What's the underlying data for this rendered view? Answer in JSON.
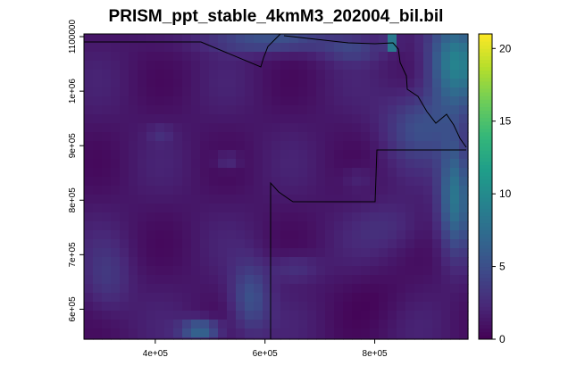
{
  "chart_data": {
    "type": "heatmap",
    "title": "PRISM_ppt_stable_4kmM3_202004_bil.bil",
    "xlabel": "",
    "ylabel": "",
    "x_ticks": [
      {
        "value": 400000,
        "label": "4e+05"
      },
      {
        "value": 600000,
        "label": "6e+05"
      },
      {
        "value": 800000,
        "label": "8e+05"
      }
    ],
    "y_ticks": [
      {
        "value": 600000,
        "label": "6e+05"
      },
      {
        "value": 700000,
        "label": "7e+05"
      },
      {
        "value": 800000,
        "label": "8e+05"
      },
      {
        "value": 900000,
        "label": "9e+05"
      },
      {
        "value": 1000000,
        "label": "1e+06"
      },
      {
        "value": 1100000,
        "label": "1100000"
      }
    ],
    "xlim": [
      270000,
      970000
    ],
    "ylim": [
      545000,
      1105000
    ],
    "colorbar": {
      "range": [
        0,
        21
      ],
      "ticks": [
        {
          "value": 0,
          "label": "0"
        },
        {
          "value": 5,
          "label": "5"
        },
        {
          "value": 10,
          "label": "10"
        },
        {
          "value": 15,
          "label": "15"
        },
        {
          "value": 20,
          "label": "20"
        }
      ],
      "palette": "viridis"
    },
    "grid": false,
    "colors": {
      "viridis_low": "#440154",
      "viridis_mid": "#21908C",
      "viridis_high": "#FDE725"
    }
  }
}
